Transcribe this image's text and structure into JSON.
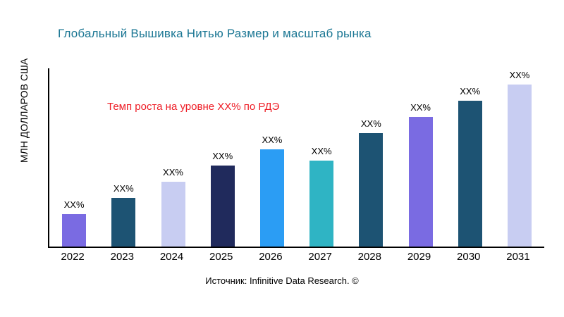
{
  "chart_data": {
    "type": "bar",
    "title": "Глобальный Вышивка Нитью Размер и масштаб рынка",
    "ylabel": "МЛН ДОЛЛАРОВ США",
    "xlabel": "",
    "annotation": "Темп роста на уровне XX% по РДЭ",
    "source": "Источник: Infinitive Data Research. ©",
    "categories": [
      "2022",
      "2023",
      "2024",
      "2025",
      "2026",
      "2027",
      "2028",
      "2029",
      "2030",
      "2031"
    ],
    "values": [
      20,
      30,
      40,
      50,
      60,
      53,
      70,
      80,
      90,
      100
    ],
    "value_labels": [
      "XX%",
      "XX%",
      "XX%",
      "XX%",
      "XX%",
      "XX%",
      "XX%",
      "XX%",
      "XX%",
      "XX%"
    ],
    "bar_colors": [
      "#7a6be2",
      "#1d5373",
      "#c8cdf2",
      "#202a5c",
      "#2b9df4",
      "#2fb4c4",
      "#1d5373",
      "#7a6be2",
      "#1d5373",
      "#c8cdf2"
    ],
    "ylim": [
      0,
      100
    ],
    "grid": false,
    "legend": "none",
    "title_color": "#1a7693",
    "annotation_color": "#ee1c25"
  }
}
